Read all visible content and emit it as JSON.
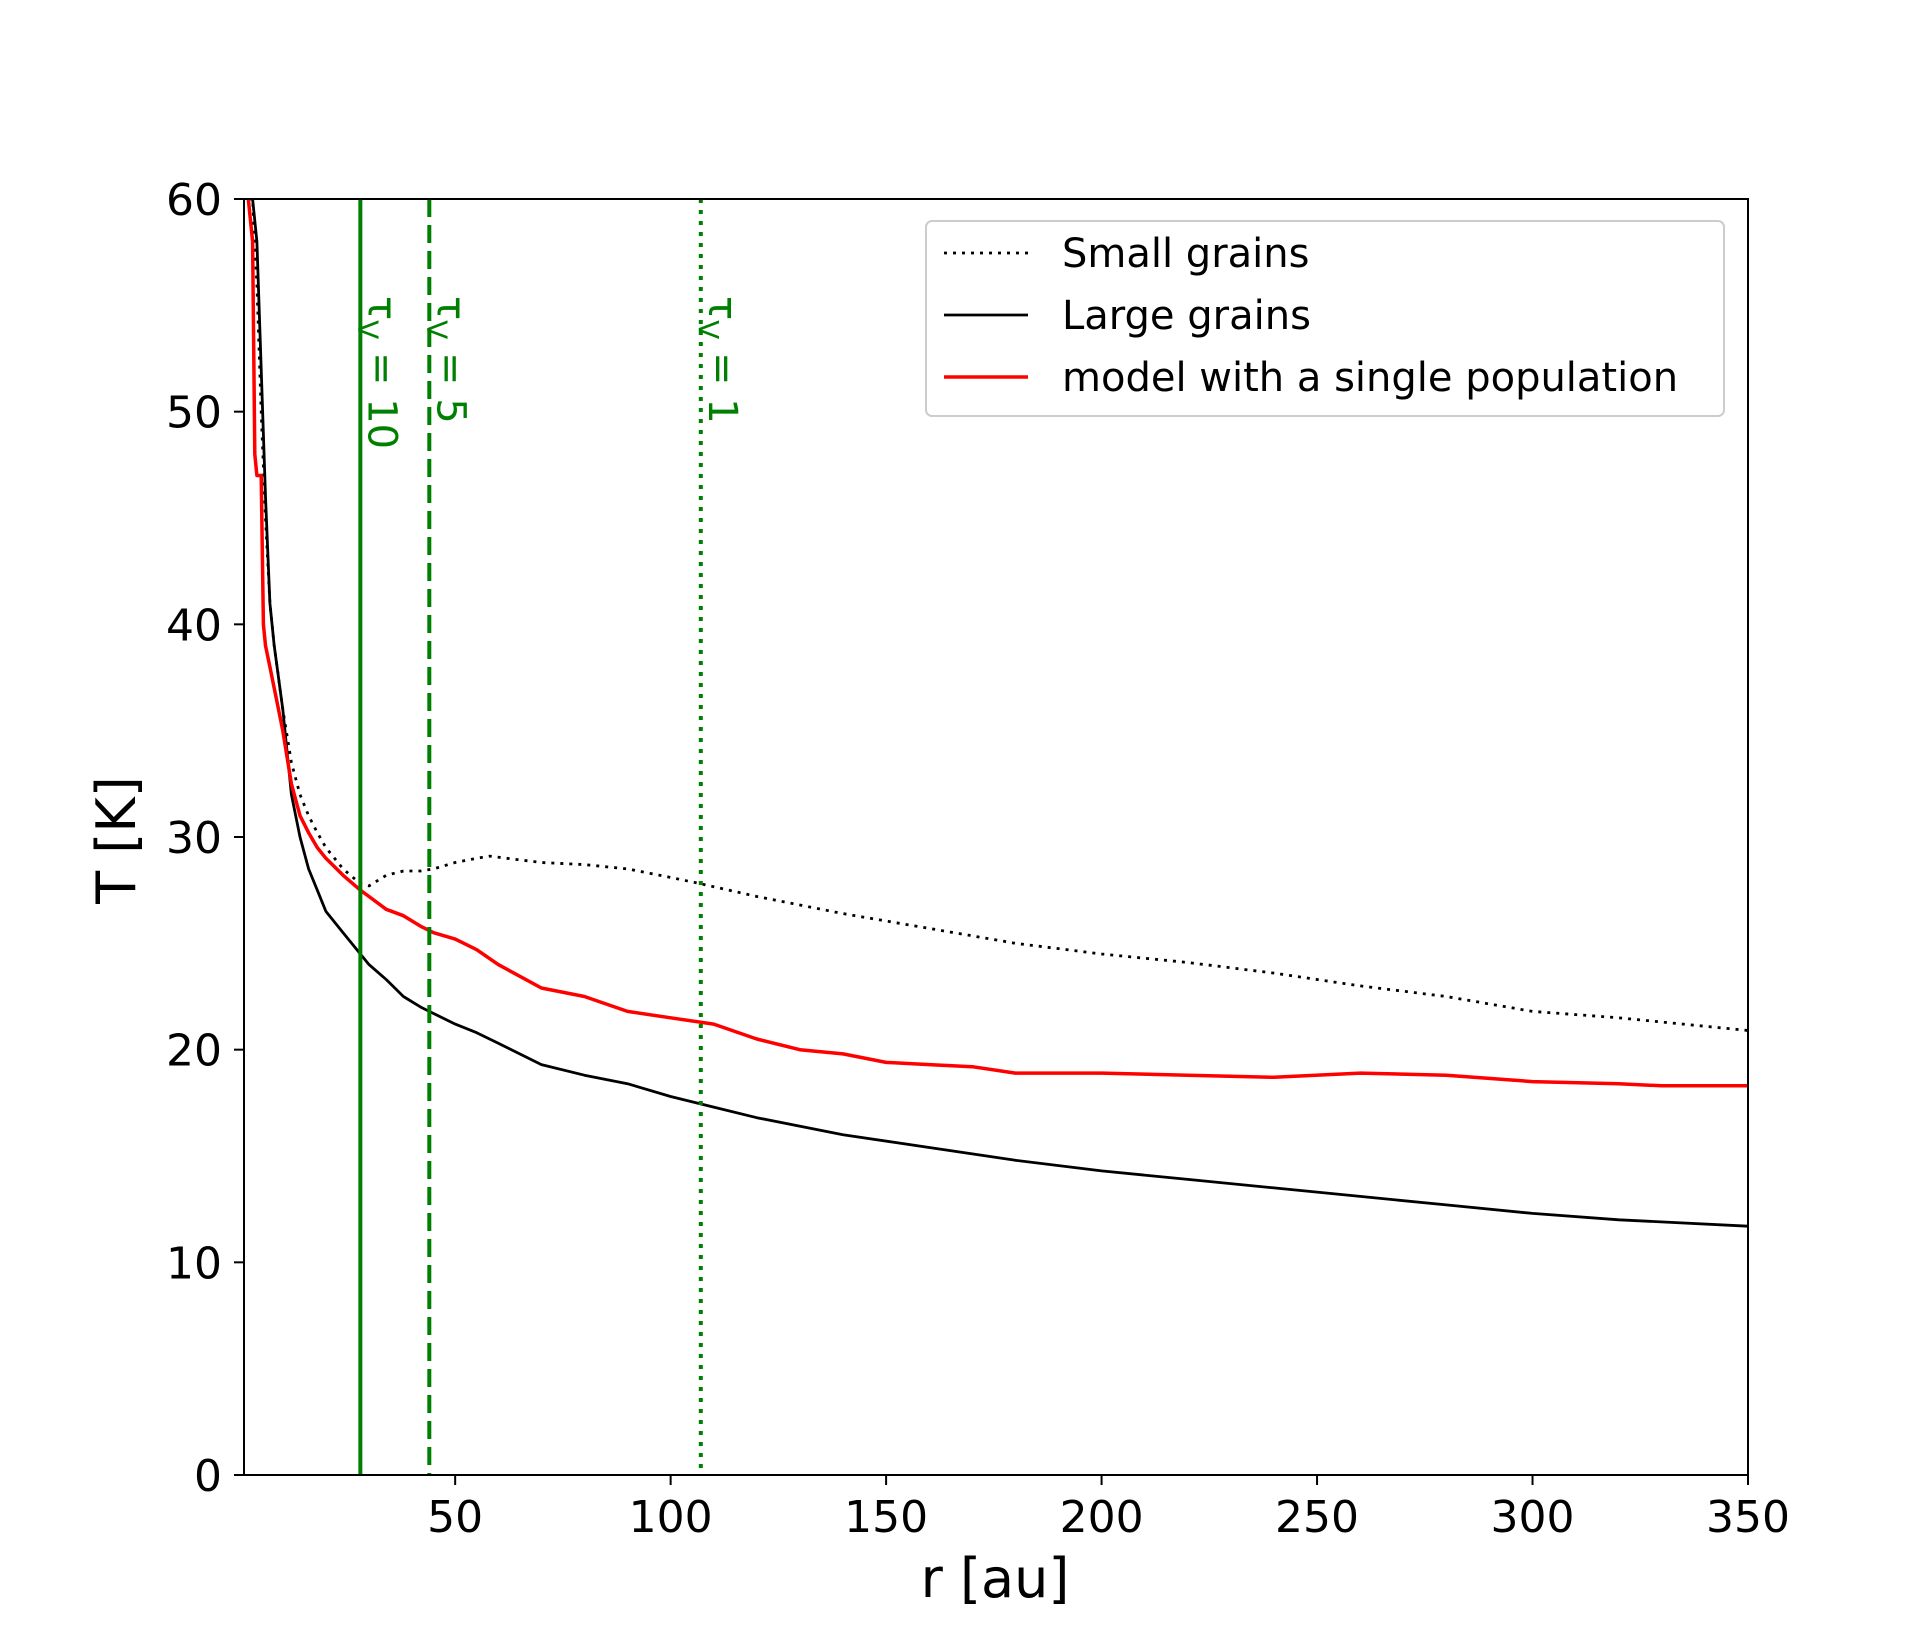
{
  "chart_data": {
    "type": "line",
    "xlabel": "r [au]",
    "ylabel": "T [K]",
    "xlim": [
      1,
      350
    ],
    "ylim": [
      0,
      60
    ],
    "x_ticks": [
      50,
      100,
      150,
      200,
      250,
      300,
      350
    ],
    "y_ticks": [
      0,
      10,
      20,
      30,
      40,
      50,
      60
    ],
    "legend_position": "top-right",
    "grid": false,
    "series": [
      {
        "name": "Small grains",
        "color": "#000000",
        "style": "dotted",
        "x": [
          2,
          3,
          4,
          5,
          6,
          7,
          8,
          10,
          12,
          14,
          16,
          18,
          20,
          24,
          28,
          30,
          34,
          38,
          42,
          45,
          50,
          55,
          58,
          62,
          70,
          80,
          90,
          100,
          107,
          120,
          140,
          160,
          180,
          200,
          220,
          240,
          260,
          280,
          300,
          320,
          350
        ],
        "y": [
          60,
          60,
          56,
          50,
          45,
          41,
          39,
          36,
          33.5,
          32,
          31,
          30.2,
          29.5,
          28.5,
          27.8,
          27.7,
          28.2,
          28.4,
          28.4,
          28.5,
          28.8,
          29.0,
          29.1,
          29.0,
          28.8,
          28.7,
          28.5,
          28.1,
          27.8,
          27.2,
          26.4,
          25.7,
          25.0,
          24.5,
          24.1,
          23.6,
          23.0,
          22.5,
          21.8,
          21.5,
          20.9
        ]
      },
      {
        "name": "Large grains",
        "color": "#000000",
        "style": "solid",
        "x": [
          2,
          3,
          4,
          5,
          6,
          7,
          8,
          10,
          12,
          14,
          16,
          18,
          20,
          24,
          28,
          30,
          34,
          38,
          42,
          45,
          50,
          55,
          60,
          70,
          80,
          90,
          100,
          110,
          120,
          140,
          160,
          180,
          200,
          220,
          240,
          260,
          280,
          300,
          320,
          350
        ],
        "y": [
          60,
          60,
          58,
          52,
          46,
          41,
          39,
          36,
          32,
          30,
          28.5,
          27.5,
          26.5,
          25.5,
          24.5,
          24.0,
          23.3,
          22.5,
          22.0,
          21.7,
          21.2,
          20.8,
          20.3,
          19.3,
          18.8,
          18.4,
          17.8,
          17.3,
          16.8,
          16.0,
          15.4,
          14.8,
          14.3,
          13.9,
          13.5,
          13.1,
          12.7,
          12.3,
          12.0,
          11.7
        ]
      },
      {
        "name": "model with a single population",
        "color": "#ff0000",
        "style": "solid",
        "x": [
          2,
          3,
          3.5,
          4,
          5,
          5.5,
          6,
          7,
          8,
          10,
          12,
          14,
          16,
          18,
          20,
          24,
          28,
          30,
          34,
          38,
          42,
          45,
          50,
          55,
          60,
          70,
          80,
          90,
          100,
          110,
          120,
          130,
          140,
          150,
          160,
          170,
          180,
          200,
          220,
          240,
          260,
          280,
          300,
          320,
          330,
          350
        ],
        "y": [
          60,
          58,
          48,
          47,
          47,
          40,
          39,
          38,
          37,
          35,
          32.5,
          31,
          30.2,
          29.5,
          29.0,
          28.2,
          27.5,
          27.2,
          26.6,
          26.3,
          25.8,
          25.5,
          25.2,
          24.7,
          24.0,
          22.9,
          22.5,
          21.8,
          21.5,
          21.2,
          20.5,
          20.0,
          19.8,
          19.4,
          19.3,
          19.2,
          18.9,
          18.9,
          18.8,
          18.7,
          18.9,
          18.8,
          18.5,
          18.4,
          18.3,
          18.3
        ]
      }
    ],
    "vertical_lines": [
      {
        "x": 28,
        "style": "solid",
        "color": "#008000",
        "label": "τ",
        "sub": "V",
        "rest": " = 10"
      },
      {
        "x": 44,
        "style": "dashed",
        "color": "#008000",
        "label": "τ",
        "sub": "V",
        "rest": " = 5"
      },
      {
        "x": 107,
        "style": "dotted",
        "color": "#008000",
        "label": "τ",
        "sub": "V",
        "rest": " = 1"
      }
    ]
  }
}
